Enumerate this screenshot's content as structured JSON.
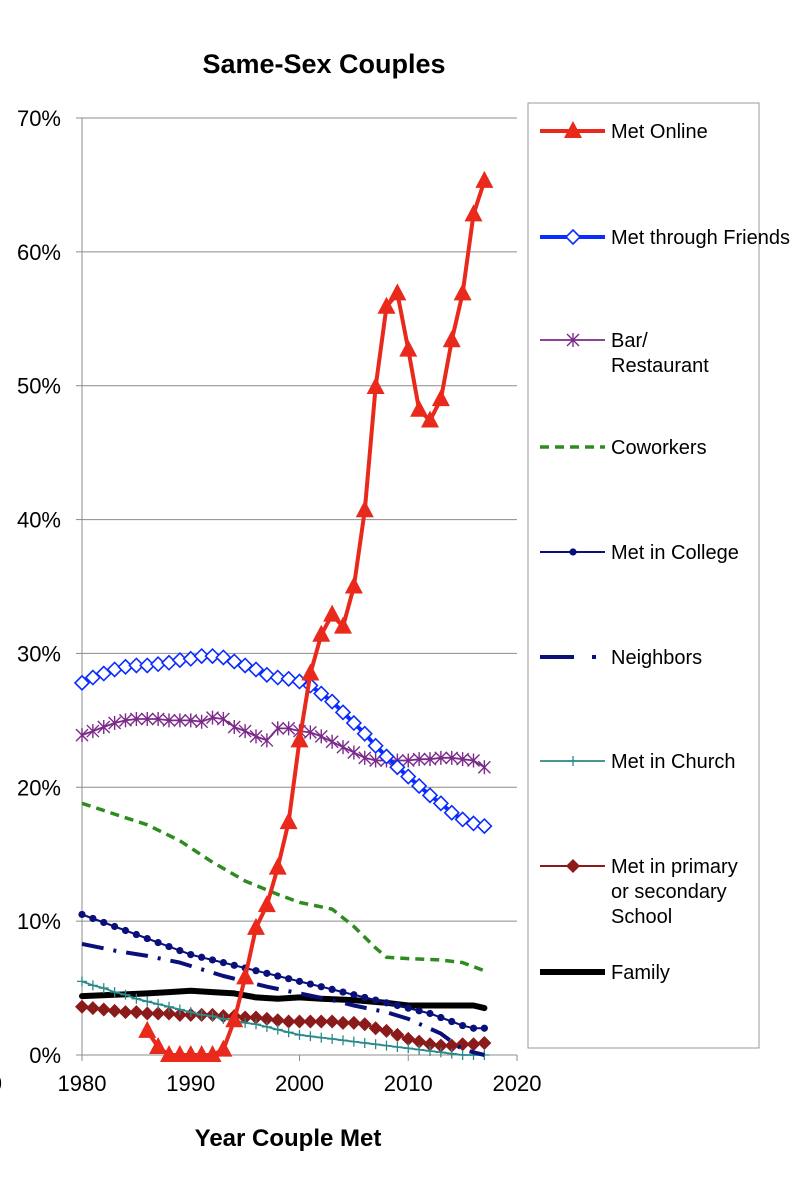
{
  "chart_data": {
    "type": "line",
    "title": "Same-Sex Couples",
    "xlabel": "Year Couple Met",
    "ylabel": "",
    "xlim": [
      1980,
      2020
    ],
    "ylim": [
      0,
      70
    ],
    "x_ticks": [
      "1980",
      "1990",
      "2000",
      "2010",
      "2020"
    ],
    "y_ticks": [
      "0%",
      "10%",
      "20%",
      "30%",
      "40%",
      "50%",
      "60%",
      "70%"
    ],
    "y_tick_values": [
      0,
      10,
      20,
      30,
      40,
      50,
      60,
      70
    ],
    "x_tick_values": [
      1980,
      1990,
      2000,
      2010,
      2020
    ],
    "clipped_left_tick": "0",
    "grid": "horizontal",
    "legend_position": "right",
    "series": [
      {
        "name": "Met Online",
        "color": "#e8291c",
        "width": 4,
        "dash": "",
        "marker": "triangle",
        "marker_every": 1,
        "x": [
          1986,
          1987,
          1988,
          1989,
          1990,
          1991,
          1992,
          1993,
          1994,
          1995,
          1996,
          1997,
          1998,
          1999,
          2000,
          2001,
          2002,
          2003,
          2004,
          2005,
          2006,
          2007,
          2008,
          2009,
          2010,
          2011,
          2012,
          2013,
          2014,
          2015,
          2016,
          2017
        ],
        "y": [
          1.8,
          0.6,
          0.0,
          0.0,
          0.0,
          0.0,
          0.0,
          0.4,
          2.6,
          5.8,
          9.5,
          11.2,
          14.0,
          17.4,
          23.5,
          28.5,
          31.4,
          32.9,
          32.0,
          35.0,
          40.7,
          49.9,
          55.9,
          56.9,
          52.7,
          48.2,
          47.4,
          49.0,
          53.4,
          56.9,
          62.8,
          65.3
        ]
      },
      {
        "name": "Met through Friends",
        "color": "#0a2cff",
        "width": 4,
        "dash": "",
        "marker": "diamond-open",
        "marker_every": 1,
        "x": [
          1980,
          1981,
          1982,
          1983,
          1984,
          1985,
          1986,
          1987,
          1988,
          1989,
          1990,
          1991,
          1992,
          1993,
          1994,
          1995,
          1996,
          1997,
          1998,
          1999,
          2000,
          2001,
          2002,
          2003,
          2004,
          2005,
          2006,
          2007,
          2008,
          2009,
          2010,
          2011,
          2012,
          2013,
          2014,
          2015,
          2016,
          2017
        ],
        "y": [
          27.8,
          28.2,
          28.5,
          28.8,
          29.0,
          29.1,
          29.1,
          29.2,
          29.3,
          29.5,
          29.6,
          29.8,
          29.8,
          29.7,
          29.4,
          29.1,
          28.8,
          28.4,
          28.2,
          28.1,
          27.9,
          27.6,
          27.0,
          26.4,
          25.6,
          24.8,
          24.0,
          23.1,
          22.3,
          21.5,
          20.8,
          20.1,
          19.4,
          18.8,
          18.1,
          17.6,
          17.3,
          17.1
        ]
      },
      {
        "name": "Bar/ Restaurant",
        "label_lines": [
          "Bar/",
          "Restaurant"
        ],
        "color": "#7b2a8a",
        "width": 1.8,
        "dash": "",
        "marker": "star",
        "marker_every": 1,
        "x": [
          1980,
          1981,
          1982,
          1983,
          1984,
          1985,
          1986,
          1987,
          1988,
          1989,
          1990,
          1991,
          1992,
          1993,
          1994,
          1995,
          1996,
          1997,
          1998,
          1999,
          2000,
          2001,
          2002,
          2003,
          2004,
          2005,
          2006,
          2007,
          2008,
          2009,
          2010,
          2011,
          2012,
          2013,
          2014,
          2015,
          2016,
          2017
        ],
        "y": [
          23.9,
          24.2,
          24.5,
          24.8,
          25.0,
          25.1,
          25.1,
          25.1,
          25.0,
          25.0,
          25.0,
          24.9,
          25.2,
          25.1,
          24.5,
          24.2,
          23.8,
          23.5,
          24.4,
          24.4,
          24.2,
          24.1,
          23.8,
          23.4,
          23.0,
          22.6,
          22.2,
          22.0,
          22.0,
          22.0,
          22.0,
          22.1,
          22.1,
          22.2,
          22.2,
          22.1,
          22.0,
          21.5
        ]
      },
      {
        "name": "Coworkers",
        "color": "#2e8b1f",
        "width": 3.5,
        "dash": "9,6",
        "marker": "none",
        "marker_every": 1,
        "x": [
          1980,
          1983,
          1986,
          1989,
          1992,
          1995,
          1998,
          2000,
          2003,
          2005,
          2007,
          2008,
          2010,
          2013,
          2015,
          2017
        ],
        "y": [
          18.8,
          18.0,
          17.2,
          16.0,
          14.4,
          13.0,
          12.0,
          11.4,
          10.9,
          9.6,
          8.0,
          7.3,
          7.2,
          7.1,
          6.9,
          6.3
        ]
      },
      {
        "name": "Met in College",
        "color": "#0a107a",
        "width": 2,
        "dash": "",
        "marker": "dot",
        "marker_every": 1,
        "x": [
          1980,
          1981,
          1982,
          1983,
          1984,
          1985,
          1986,
          1987,
          1988,
          1989,
          1990,
          1991,
          1992,
          1993,
          1994,
          1995,
          1996,
          1997,
          1998,
          1999,
          2000,
          2001,
          2002,
          2003,
          2004,
          2005,
          2006,
          2007,
          2008,
          2009,
          2010,
          2011,
          2012,
          2013,
          2014,
          2015,
          2016,
          2017
        ],
        "y": [
          10.5,
          10.2,
          9.9,
          9.6,
          9.3,
          9.0,
          8.7,
          8.4,
          8.1,
          7.8,
          7.5,
          7.3,
          7.1,
          6.9,
          6.7,
          6.5,
          6.3,
          6.1,
          5.9,
          5.7,
          5.5,
          5.3,
          5.1,
          4.9,
          4.7,
          4.5,
          4.3,
          4.1,
          3.9,
          3.7,
          3.5,
          3.3,
          3.1,
          2.8,
          2.5,
          2.2,
          2.0,
          2.0
        ]
      },
      {
        "name": "Neighbors",
        "color": "#0a107a",
        "width": 4,
        "dash": "22,10,3,10",
        "marker": "none",
        "marker_every": 1,
        "x": [
          1980,
          1983,
          1986,
          1989,
          1991,
          1993,
          1995,
          1997,
          2000,
          2003,
          2005,
          2008,
          2010,
          2013,
          2015,
          2017
        ],
        "y": [
          8.3,
          7.8,
          7.4,
          6.9,
          6.4,
          5.9,
          5.5,
          5.1,
          4.6,
          4.1,
          3.7,
          3.2,
          2.7,
          1.6,
          0.4,
          0.0
        ]
      },
      {
        "name": "Met in Church",
        "color": "#2a8a8a",
        "width": 1.8,
        "dash": "",
        "marker": "plus",
        "marker_every": 1,
        "x": [
          1980,
          1981,
          1982,
          1983,
          1984,
          1985,
          1986,
          1987,
          1988,
          1989,
          1990,
          1991,
          1992,
          1993,
          1994,
          1995,
          1996,
          1997,
          1998,
          1999,
          2000,
          2001,
          2002,
          2003,
          2004,
          2005,
          2006,
          2007,
          2008,
          2009,
          2010,
          2011,
          2012,
          2013,
          2014,
          2015,
          2016,
          2017
        ],
        "y": [
          5.5,
          5.2,
          5.0,
          4.7,
          4.5,
          4.2,
          4.0,
          3.8,
          3.6,
          3.4,
          3.2,
          3.0,
          2.9,
          2.7,
          2.6,
          2.4,
          2.3,
          2.1,
          1.9,
          1.7,
          1.5,
          1.4,
          1.3,
          1.2,
          1.1,
          1.0,
          0.9,
          0.8,
          0.7,
          0.6,
          0.5,
          0.4,
          0.3,
          0.2,
          0.1,
          0.0,
          0.0,
          0.0
        ]
      },
      {
        "name": "Met in primary or secondary School",
        "label_lines": [
          "Met in primary",
          "or secondary",
          "School"
        ],
        "color": "#8b1a1a",
        "width": 2,
        "dash": "",
        "marker": "diamond-filled",
        "marker_every": 1,
        "x": [
          1980,
          1981,
          1982,
          1983,
          1984,
          1985,
          1986,
          1987,
          1988,
          1989,
          1990,
          1991,
          1992,
          1993,
          1994,
          1995,
          1996,
          1997,
          1998,
          1999,
          2000,
          2001,
          2002,
          2003,
          2004,
          2005,
          2006,
          2007,
          2008,
          2009,
          2010,
          2011,
          2012,
          2013,
          2014,
          2015,
          2016,
          2017
        ],
        "y": [
          3.6,
          3.5,
          3.4,
          3.3,
          3.2,
          3.2,
          3.1,
          3.1,
          3.1,
          3.0,
          3.0,
          3.0,
          3.0,
          2.9,
          2.9,
          2.8,
          2.8,
          2.7,
          2.6,
          2.5,
          2.5,
          2.5,
          2.5,
          2.5,
          2.4,
          2.4,
          2.3,
          2.0,
          1.8,
          1.5,
          1.2,
          1.0,
          0.8,
          0.7,
          0.7,
          0.8,
          0.8,
          0.9
        ]
      },
      {
        "name": "Family",
        "color": "#000000",
        "width": 6,
        "dash": "",
        "marker": "none",
        "marker_every": 1,
        "x": [
          1980,
          1983,
          1986,
          1988,
          1990,
          1992,
          1994,
          1996,
          1998,
          2000,
          2002,
          2005,
          2008,
          2010,
          2012,
          2014,
          2016,
          2017
        ],
        "y": [
          4.4,
          4.5,
          4.6,
          4.7,
          4.8,
          4.7,
          4.6,
          4.3,
          4.2,
          4.3,
          4.2,
          4.1,
          3.9,
          3.7,
          3.7,
          3.7,
          3.7,
          3.5
        ]
      }
    ]
  }
}
